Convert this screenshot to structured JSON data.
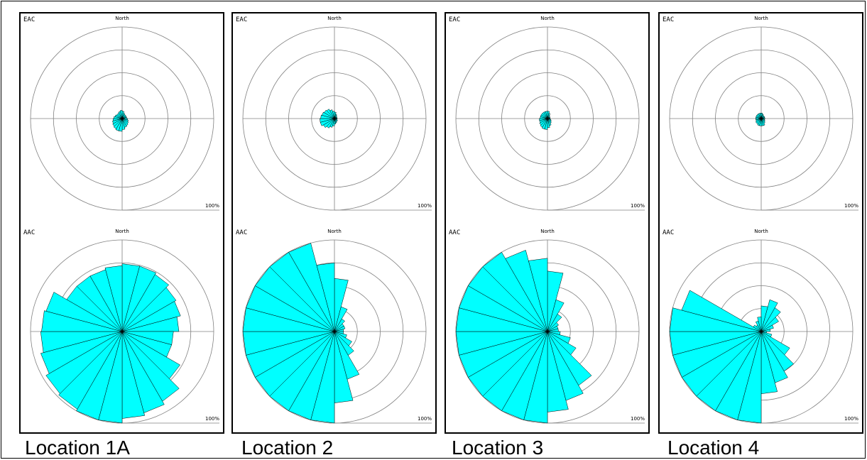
{
  "colors": {
    "rose_fill": "#00ffff",
    "rose_stroke": "#000000",
    "grid": "#808080",
    "frame": "#000000"
  },
  "chart_data": [
    {
      "type": "polar_rose",
      "location": "Location 1A",
      "scale_label": "100%",
      "north_label": "North",
      "sectors": 24,
      "sector_start_deg": 0,
      "EAC": {
        "label": "EAC",
        "values": [
          8,
          6,
          5,
          5,
          5,
          5,
          6,
          7,
          8,
          9,
          10,
          12,
          14,
          14,
          13,
          12,
          11,
          10,
          9,
          8,
          7,
          7,
          8,
          9
        ]
      },
      "AAC": {
        "label": "AAC",
        "values": [
          74,
          74,
          72,
          68,
          66,
          62,
          56,
          56,
          73,
          88,
          92,
          95,
          100,
          100,
          98,
          96,
          92,
          89,
          88,
          86,
          70,
          70,
          70,
          72
        ]
      }
    },
    {
      "type": "polar_rose",
      "location": "Location 2",
      "scale_label": "100%",
      "north_label": "North",
      "sectors": 24,
      "sector_start_deg": 0,
      "EAC": {
        "label": "EAC",
        "values": [
          7,
          5,
          4,
          3,
          3,
          3,
          3,
          3,
          4,
          4,
          5,
          6,
          8,
          10,
          12,
          14,
          16,
          16,
          15,
          14,
          13,
          12,
          10,
          8
        ]
      },
      "AAC": {
        "label": "AAC",
        "values": [
          58,
          28,
          16,
          12,
          12,
          10,
          10,
          14,
          22,
          30,
          54,
          78,
          100,
          100,
          100,
          100,
          100,
          100,
          100,
          100,
          100,
          100,
          100,
          75
        ]
      }
    },
    {
      "type": "polar_rose",
      "location": "Location 3",
      "scale_label": "100%",
      "north_label": "North",
      "sectors": 24,
      "sector_start_deg": 0,
      "EAC": {
        "label": "EAC",
        "values": [
          8,
          6,
          4,
          3,
          3,
          3,
          3,
          4,
          5,
          6,
          8,
          10,
          12,
          12,
          11,
          10,
          9,
          9,
          8,
          8,
          8,
          8,
          8,
          8
        ]
      },
      "AAC": {
        "label": "AAC",
        "values": [
          66,
          36,
          22,
          14,
          12,
          12,
          14,
          26,
          36,
          68,
          78,
          88,
          100,
          100,
          100,
          100,
          100,
          100,
          100,
          100,
          100,
          100,
          92,
          80
        ]
      }
    },
    {
      "type": "polar_rose",
      "location": "Location 4",
      "scale_label": "100%",
      "north_label": "North",
      "sectors": 24,
      "sector_start_deg": 0,
      "EAC": {
        "label": "EAC",
        "values": [
          6,
          5,
          4,
          4,
          4,
          4,
          4,
          4,
          5,
          6,
          8,
          8,
          8,
          8,
          7,
          7,
          6,
          6,
          6,
          6,
          6,
          6,
          6,
          6
        ]
      },
      "AAC": {
        "label": "AAC",
        "values": [
          28,
          36,
          30,
          22,
          14,
          10,
          6,
          12,
          36,
          50,
          58,
          68,
          100,
          100,
          100,
          100,
          100,
          100,
          100,
          90,
          10,
          8,
          12,
          16
        ]
      }
    }
  ]
}
